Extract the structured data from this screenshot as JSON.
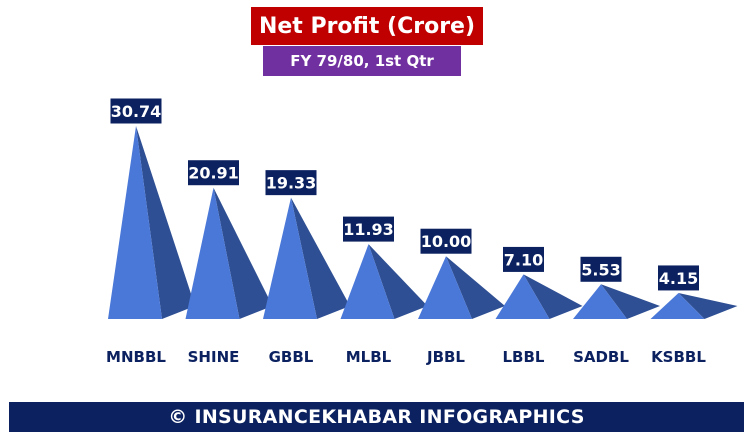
{
  "chart_data": {
    "type": "bar",
    "title": "Net Profit (Crore)",
    "subtitle": "FY 79/80, 1st Qtr",
    "categories": [
      "MNBBL",
      "SHINE",
      "GBBL",
      "MLBL",
      "JBBL",
      "LBBL",
      "SADBL",
      "KSBBL"
    ],
    "values": [
      30.74,
      20.91,
      19.33,
      11.93,
      10.0,
      7.1,
      5.53,
      4.15
    ],
    "value_labels": [
      "30.74",
      "20.91",
      "19.33",
      "11.93",
      "10.00",
      "7.10",
      "5.53",
      "4.15"
    ],
    "xlabel": "",
    "ylabel": "",
    "ylim": [
      0,
      30.74
    ],
    "grid": false,
    "legend": "none"
  },
  "footer": "© INSURANCEKHABAR INFOGRAPHICS",
  "colors": {
    "title_bg": "#c00000",
    "subtitle_bg": "#7030a0",
    "label_bg": "#0b2160",
    "category_text": "#0b2160",
    "pyramid_light": "#4a78d8",
    "pyramid_dark": "#2e4f93",
    "footer_bg": "#0b2160"
  }
}
